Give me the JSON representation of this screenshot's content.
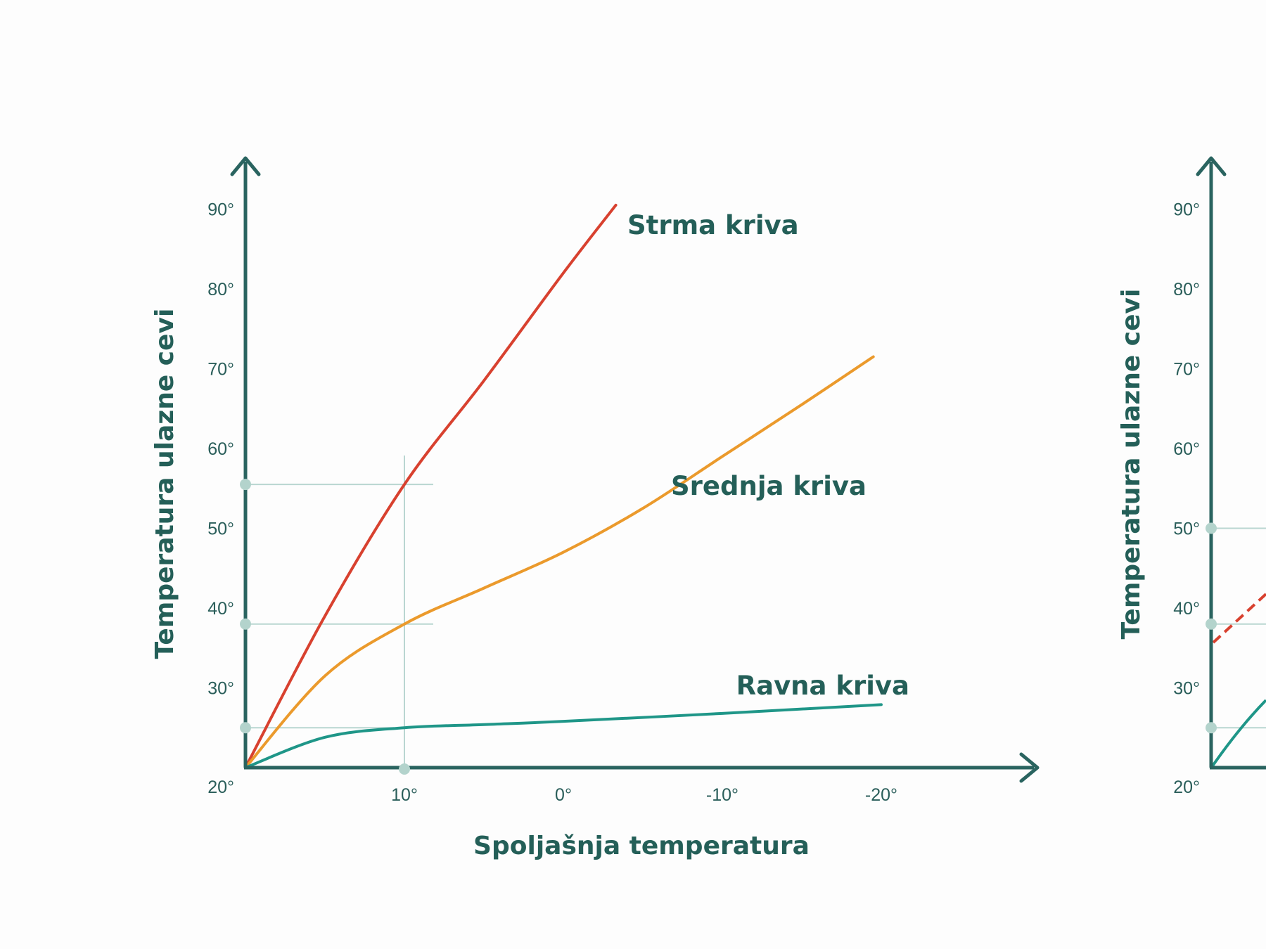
{
  "chart_data": [
    {
      "type": "line",
      "title": "",
      "xlabel": "Spoljašnja temperatura",
      "ylabel": "Temperatura ulazne cevi",
      "x_ticks": [
        "10°",
        "0°",
        "-10°",
        "-20°"
      ],
      "x_tick_values": [
        10,
        0,
        -10,
        -20
      ],
      "y_ticks": [
        "20°",
        "30°",
        "40°",
        "50°",
        "60°",
        "70°",
        "80°",
        "90°"
      ],
      "y_tick_values": [
        20,
        30,
        40,
        50,
        60,
        70,
        80,
        90
      ],
      "xlim": [
        20,
        -30
      ],
      "ylim": [
        20,
        96
      ],
      "x_reversed": true,
      "grid": false,
      "series": [
        {
          "name": "Strma kriva",
          "color": "#d8412f",
          "x": [
            20,
            15,
            10,
            5,
            0,
            -3.3
          ],
          "y": [
            20,
            39,
            55.5,
            68.5,
            82,
            90.5
          ]
        },
        {
          "name": "Srednja kriva",
          "color": "#eb9a2c",
          "x": [
            20,
            15,
            10,
            5,
            0,
            -5,
            -10,
            -15,
            -19.5
          ],
          "y": [
            20,
            31.5,
            38,
            42.5,
            47,
            52.5,
            59,
            65.5,
            71.5
          ]
        },
        {
          "name": "Ravna kriva",
          "color": "#1f9688",
          "x": [
            20,
            15,
            10,
            5,
            0,
            -10,
            -20
          ],
          "y": [
            20,
            23.8,
            25,
            25.4,
            25.8,
            26.8,
            27.9
          ]
        }
      ],
      "reference_points": [
        {
          "x": 10,
          "y": 55.5
        },
        {
          "x": 10,
          "y": 38
        },
        {
          "x": 10,
          "y": 25
        }
      ]
    },
    {
      "type": "line",
      "title": "",
      "xlabel": "",
      "ylabel": "Temperatura ulazne cevi",
      "y_ticks": [
        "20°",
        "30°",
        "40°",
        "50°",
        "60°",
        "70°",
        "80°",
        "90°"
      ],
      "y_tick_values": [
        20,
        30,
        40,
        50,
        60,
        70,
        80,
        90
      ],
      "ylim": [
        20,
        96
      ],
      "markers_y": [
        50,
        38,
        25
      ],
      "series": [
        {
          "name": "",
          "color": "#d8412f",
          "dashed": true,
          "partial": true
        },
        {
          "name": "",
          "color": "#1f9688",
          "partial": true
        }
      ]
    }
  ]
}
